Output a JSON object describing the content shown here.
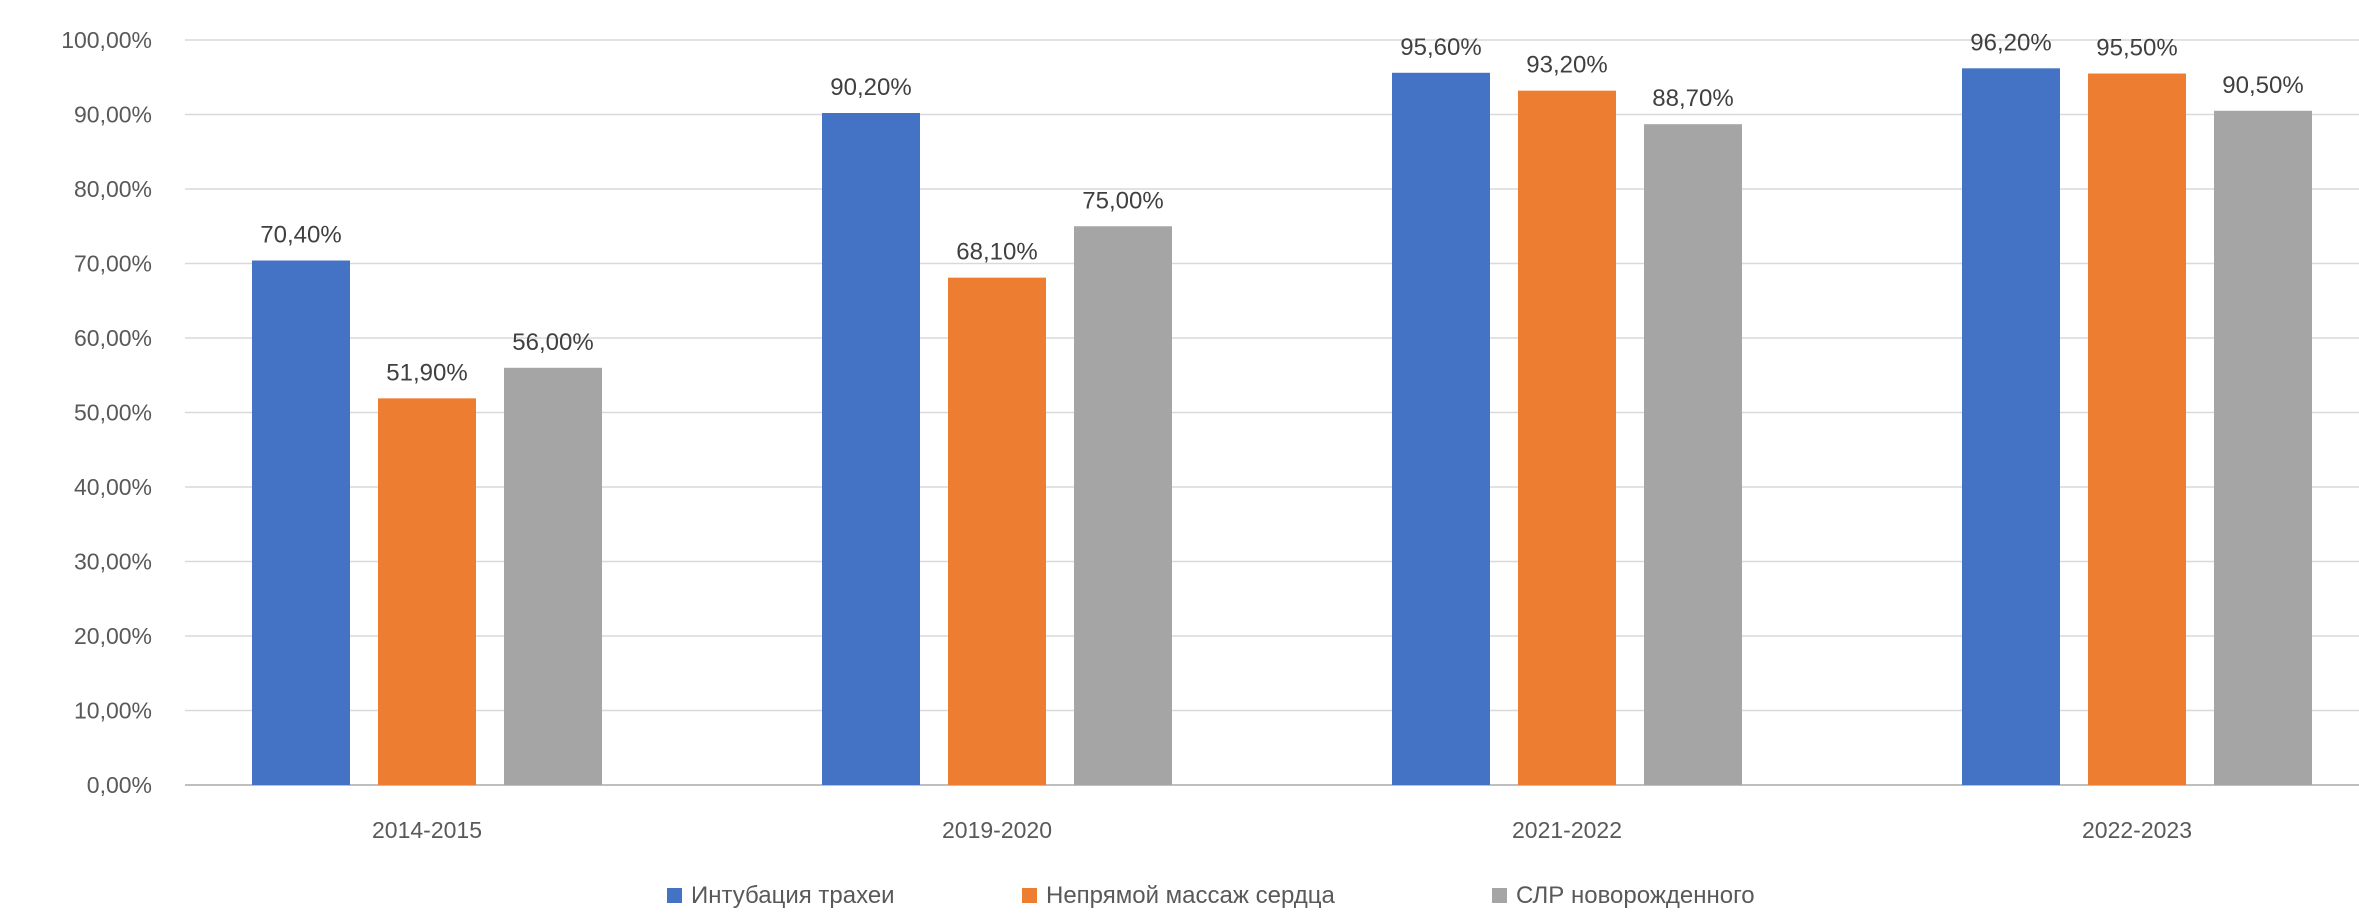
{
  "chart_data": {
    "type": "bar",
    "title": "",
    "xlabel": "",
    "ylabel": "",
    "categories": [
      "2014-2015",
      "2019-2020",
      "2021-2022",
      "2022-2023"
    ],
    "series": [
      {
        "name": "Интубация трахеи",
        "color": "#4472C4",
        "values": [
          70.4,
          90.2,
          95.6,
          96.2
        ],
        "labels": [
          "70,40%",
          "90,20%",
          "95,60%",
          "96,20%"
        ]
      },
      {
        "name": "Непрямой массаж сердца",
        "color": "#ED7D31",
        "values": [
          51.9,
          68.1,
          93.2,
          95.5
        ],
        "labels": [
          "51,90%",
          "68,10%",
          "93,20%",
          "95,50%"
        ]
      },
      {
        "name": "СЛР новорожденного",
        "color": "#A5A5A5",
        "values": [
          56.0,
          75.0,
          88.7,
          90.5
        ],
        "labels": [
          "56,00%",
          "75,00%",
          "88,70%",
          "90,50%"
        ]
      }
    ],
    "ylim": [
      0,
      100
    ],
    "y_ticks": [
      0,
      10,
      20,
      30,
      40,
      50,
      60,
      70,
      80,
      90,
      100
    ],
    "y_tick_labels": [
      "0,00%",
      "10,00%",
      "20,00%",
      "30,00%",
      "40,00%",
      "50,00%",
      "60,00%",
      "70,00%",
      "80,00%",
      "90,00%",
      "100,00%"
    ],
    "grid": true,
    "legend_position": "bottom"
  }
}
